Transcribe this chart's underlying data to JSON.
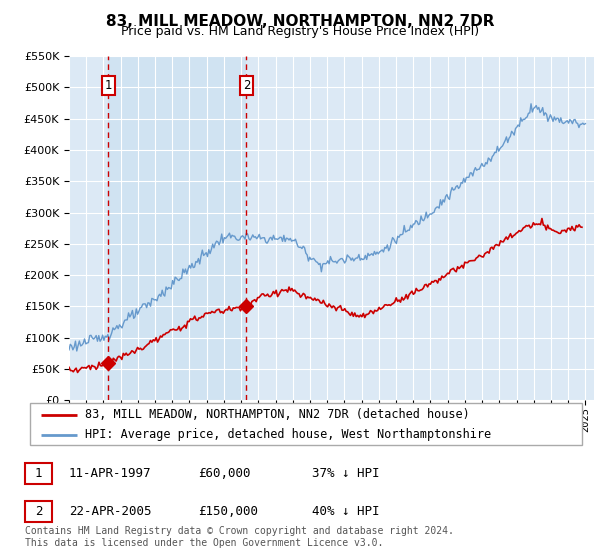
{
  "title": "83, MILL MEADOW, NORTHAMPTON, NN2 7DR",
  "subtitle": "Price paid vs. HM Land Registry's House Price Index (HPI)",
  "legend_line1": "83, MILL MEADOW, NORTHAMPTON, NN2 7DR (detached house)",
  "legend_line2": "HPI: Average price, detached house, West Northamptonshire",
  "sale1_label": "1",
  "sale1_date": "11-APR-1997",
  "sale1_price": "£60,000",
  "sale1_hpi": "37% ↓ HPI",
  "sale1_year": 1997.28,
  "sale1_value": 60000,
  "sale2_label": "2",
  "sale2_date": "22-APR-2005",
  "sale2_price": "£150,000",
  "sale2_hpi": "40% ↓ HPI",
  "sale2_year": 2005.31,
  "sale2_value": 150000,
  "footer": "Contains HM Land Registry data © Crown copyright and database right 2024.\nThis data is licensed under the Open Government Licence v3.0.",
  "ylim_max": 550000,
  "ylim_min": 0,
  "xmin": 1995,
  "xmax": 2025.5,
  "bg_color": "#dce9f5",
  "shade_color": "#c8dff0",
  "red_line_color": "#cc0000",
  "blue_line_color": "#6699cc",
  "vline_color": "#cc0000",
  "grid_color": "#ffffff",
  "marker_color": "#cc0000",
  "title_fontsize": 11,
  "subtitle_fontsize": 9,
  "tick_fontsize": 7.5,
  "ytick_fontsize": 8,
  "legend_fontsize": 8.5,
  "table_fontsize": 9,
  "footer_fontsize": 7
}
